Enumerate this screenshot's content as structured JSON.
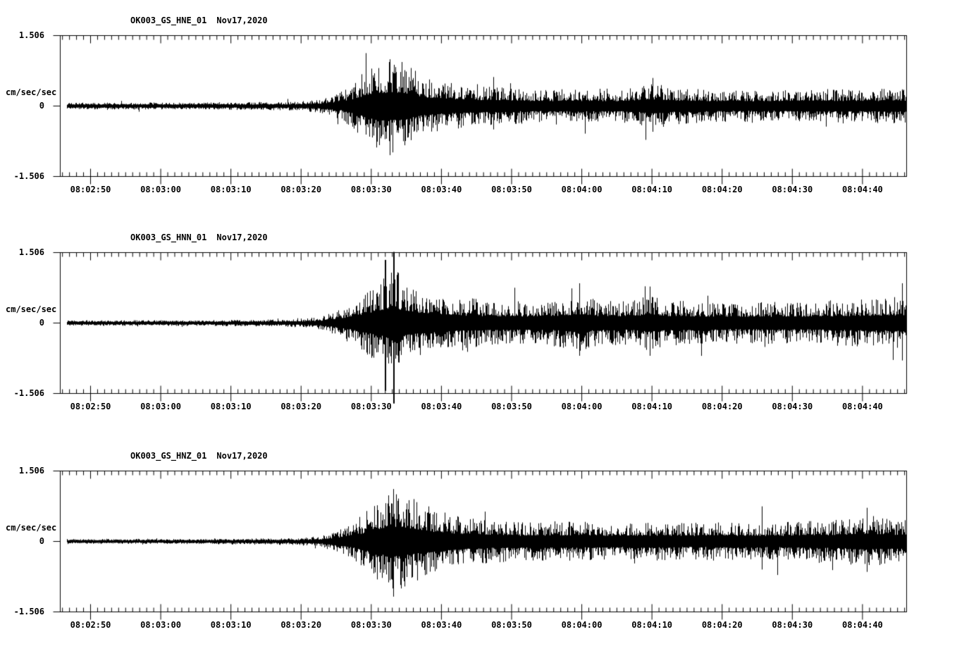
{
  "page": {
    "background": "#ffffff",
    "trace_color": "#000000",
    "description": "Three-channel strong-motion seismogram record section, station OK003, Nov 17 2020"
  },
  "chart_data": [
    {
      "type": "line",
      "subtype": "seismogram",
      "title": "OK003_GS_HNE_01",
      "date": "Nov17,2020",
      "ylabel": "cm/sec/sec",
      "ylim": [
        -1.506,
        1.506
      ],
      "ytick_labels": [
        "1.506",
        "0",
        "-1.506"
      ],
      "x_start": "08:02:46",
      "x_end": "08:04:46",
      "xtick_labels": [
        "08:02:50",
        "08:03:00",
        "08:03:10",
        "08:03:20",
        "08:03:30",
        "08:03:40",
        "08:03:50",
        "08:04:00",
        "08:04:10",
        "08:04:20",
        "08:04:30",
        "08:04:40"
      ],
      "event_onset": "08:03:20",
      "peak_amplitude": 1.0,
      "envelope": {
        "t0": "08:02:47",
        "t_seconds": [
          0,
          20,
          33,
          36,
          39,
          41,
          43,
          45,
          47,
          49,
          51,
          54,
          58,
          63,
          68,
          73,
          78,
          82,
          84,
          86,
          92,
          100,
          108,
          119.5
        ],
        "amplitude": [
          0.055,
          0.06,
          0.08,
          0.13,
          0.28,
          0.5,
          0.85,
          0.95,
          1.0,
          0.8,
          0.62,
          0.5,
          0.42,
          0.38,
          0.33,
          0.35,
          0.32,
          0.42,
          0.48,
          0.38,
          0.33,
          0.32,
          0.35,
          0.35
        ],
        "unit": "cm/sec/sec"
      },
      "spikes": [
        {
          "t": 46.0,
          "up": 1.0,
          "down": 1.05
        },
        {
          "t": 60.8,
          "up": 0.62,
          "down": 0.5
        },
        {
          "t": 83.5,
          "up": 0.6,
          "down": 0.55
        }
      ]
    },
    {
      "type": "line",
      "subtype": "seismogram",
      "title": "OK003_GS_HNN_01",
      "date": "Nov17,2020",
      "ylabel": "cm/sec/sec",
      "ylim": [
        -1.506,
        1.506
      ],
      "ytick_labels": [
        "1.506",
        "0",
        "-1.506"
      ],
      "x_start": "08:02:46",
      "x_end": "08:04:46",
      "xtick_labels": [
        "08:02:50",
        "08:03:00",
        "08:03:10",
        "08:03:20",
        "08:03:30",
        "08:03:40",
        "08:03:50",
        "08:04:00",
        "08:04:10",
        "08:04:20",
        "08:04:30",
        "08:04:40"
      ],
      "event_onset": "08:03:20",
      "peak_amplitude": 1.5,
      "envelope": {
        "t0": "08:02:47",
        "t_seconds": [
          0,
          20,
          33,
          36,
          39,
          42,
          44,
          45.5,
          46.5,
          47.5,
          49,
          52,
          55,
          60,
          65,
          70,
          73,
          75,
          80,
          83,
          85,
          90,
          95,
          100,
          105,
          110,
          115,
          119.5
        ],
        "amplitude": [
          0.04,
          0.045,
          0.07,
          0.12,
          0.3,
          0.6,
          0.85,
          1.0,
          1.3,
          0.95,
          0.8,
          0.65,
          0.55,
          0.48,
          0.45,
          0.5,
          0.6,
          0.5,
          0.45,
          0.6,
          0.5,
          0.45,
          0.42,
          0.45,
          0.42,
          0.48,
          0.52,
          0.55
        ],
        "unit": "cm/sec/sec"
      },
      "spikes": [
        {
          "t": 45.3,
          "up": 1.35,
          "down": 1.45
        },
        {
          "t": 46.5,
          "up": 1.52,
          "down": 1.72
        },
        {
          "t": 73.0,
          "up": 0.85,
          "down": 0.7
        },
        {
          "t": 83.0,
          "up": 0.78,
          "down": 0.7
        },
        {
          "t": 119.0,
          "up": 0.85,
          "down": 0.8
        }
      ]
    },
    {
      "type": "line",
      "subtype": "seismogram",
      "title": "OK003_GS_HNZ_01",
      "date": "Nov17,2020",
      "ylabel": "cm/sec/sec",
      "ylim": [
        -1.506,
        1.506
      ],
      "ytick_labels": [
        "1.506",
        "0",
        "-1.506"
      ],
      "x_start": "08:02:46",
      "x_end": "08:04:46",
      "xtick_labels": [
        "08:02:50",
        "08:03:00",
        "08:03:10",
        "08:03:20",
        "08:03:30",
        "08:03:40",
        "08:03:50",
        "08:04:00",
        "08:04:10",
        "08:04:20",
        "08:04:30",
        "08:04:40"
      ],
      "event_onset": "08:03:20",
      "peak_amplitude": 1.1,
      "envelope": {
        "t0": "08:02:47",
        "t_seconds": [
          0,
          20,
          33,
          36,
          39,
          42,
          44,
          46,
          48,
          50,
          52,
          55,
          60,
          65,
          70,
          75,
          80,
          85,
          90,
          95,
          100,
          105,
          110,
          113,
          116,
          119.5
        ],
        "amplitude": [
          0.035,
          0.04,
          0.06,
          0.1,
          0.25,
          0.55,
          0.85,
          1.1,
          1.0,
          0.85,
          0.7,
          0.55,
          0.45,
          0.4,
          0.42,
          0.4,
          0.38,
          0.4,
          0.38,
          0.4,
          0.38,
          0.42,
          0.45,
          0.55,
          0.5,
          0.45
        ],
        "unit": "cm/sec/sec"
      },
      "spikes": [
        {
          "t": 46.5,
          "up": 1.12,
          "down": 1.18
        },
        {
          "t": 99.0,
          "up": 0.75,
          "down": 0.6
        },
        {
          "t": 114.0,
          "up": 0.72,
          "down": 0.65
        }
      ]
    }
  ]
}
